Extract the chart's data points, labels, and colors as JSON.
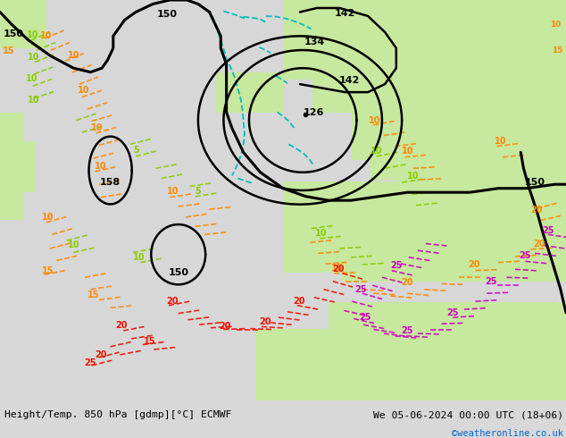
{
  "title_left": "Height/Temp. 850 hPa [gdmp][°C] ECMWF",
  "title_right": "We 05-06-2024 00:00 UTC (18+06)",
  "copyright": "©weatheronline.co.uk",
  "copyright_color": "#0066cc",
  "figsize": [
    6.34,
    4.9
  ],
  "dpi": 100,
  "bg_color": "#d8d8d8",
  "land_green": "#c8e8a0",
  "bottom_bar_color": "#f0f0f0",
  "black": "#000000",
  "cyan": "#00bbbb",
  "green": "#88cc00",
  "orange": "#ff8800",
  "red": "#ee1100",
  "magenta": "#cc00bb",
  "map_extent": [
    -30,
    50,
    25,
    75
  ],
  "height_contours": {
    "color": "#000000",
    "linewidth": 2.2
  },
  "temp_contours": {
    "linewidth": 1.3,
    "linestyle": "--"
  }
}
